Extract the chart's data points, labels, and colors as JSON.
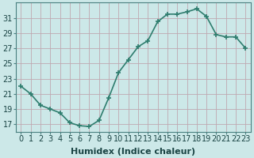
{
  "x": [
    0,
    1,
    2,
    3,
    4,
    5,
    6,
    7,
    8,
    9,
    10,
    11,
    12,
    13,
    14,
    15,
    16,
    17,
    18,
    19,
    20,
    21,
    22,
    23
  ],
  "y": [
    22.0,
    21.0,
    19.5,
    19.0,
    18.5,
    17.2,
    16.8,
    16.7,
    17.5,
    20.5,
    23.8,
    25.5,
    27.2,
    28.0,
    30.5,
    31.5,
    31.5,
    31.8,
    32.2,
    31.2,
    28.8,
    28.5,
    28.5,
    27.0
  ],
  "line_color": "#2e7d6e",
  "marker": "+",
  "marker_size": 5,
  "marker_lw": 1.2,
  "bg_color": "#cce8e8",
  "grid_color": "#c0a8b0",
  "xlabel": "Humidex (Indice chaleur)",
  "ylabel": "",
  "title": "",
  "xlim": [
    -0.5,
    23.5
  ],
  "ylim": [
    16.0,
    33.0
  ],
  "yticks": [
    17,
    19,
    21,
    23,
    25,
    27,
    29,
    31
  ],
  "xticks": [
    0,
    1,
    2,
    3,
    4,
    5,
    6,
    7,
    8,
    9,
    10,
    11,
    12,
    13,
    14,
    15,
    16,
    17,
    18,
    19,
    20,
    21,
    22,
    23
  ],
  "xtick_labels": [
    "0",
    "1",
    "2",
    "3",
    "4",
    "5",
    "6",
    "7",
    "8",
    "9",
    "10",
    "11",
    "12",
    "13",
    "14",
    "15",
    "16",
    "17",
    "18",
    "19",
    "20",
    "21",
    "22",
    "23"
  ],
  "xlabel_fontsize": 8,
  "tick_fontsize": 7,
  "line_width": 1.2,
  "spine_color": "#4a8080",
  "tick_color": "#2e5555",
  "label_color": "#1a4444"
}
